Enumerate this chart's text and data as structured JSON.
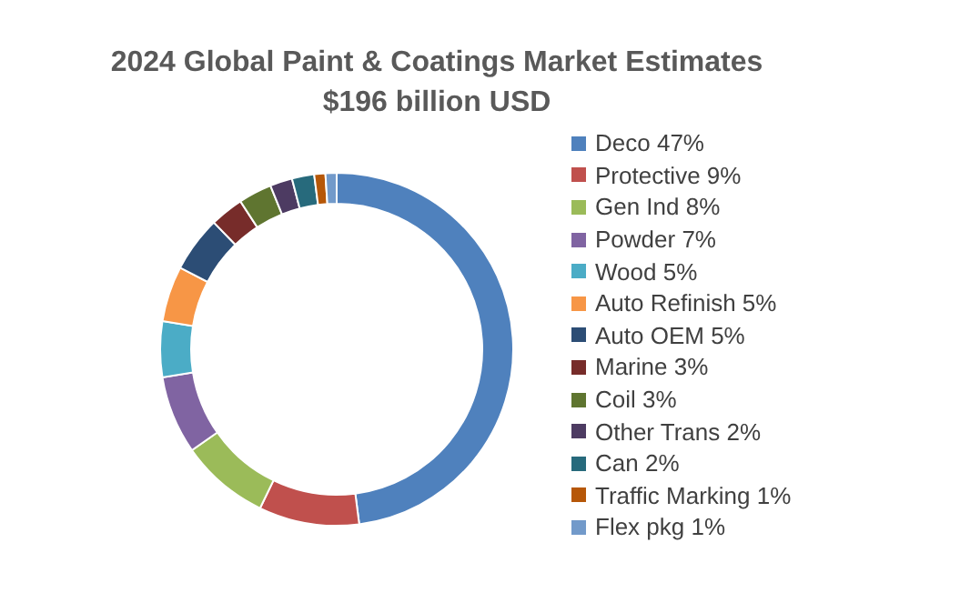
{
  "chart_data": {
    "type": "donut",
    "title": "2024 Global Paint & Coatings Market Estimates\n$196 billion USD",
    "categories": [
      "Deco 47%",
      "Protective 9%",
      "Gen Ind 8%",
      "Powder 7%",
      "Wood 5%",
      "Auto Refinish 5%",
      "Auto OEM 5%",
      "Marine 3%",
      "Coil 3%",
      "Other Trans 2%",
      "Can 2%",
      "Traffic Marking 1%",
      "Flex pkg 1%"
    ],
    "values": [
      47,
      9,
      8,
      7,
      5,
      5,
      5,
      3,
      3,
      2,
      2,
      1,
      1
    ],
    "colors": [
      "#4f81bd",
      "#c0504d",
      "#9bbb59",
      "#8064a2",
      "#4bacc6",
      "#f79646",
      "#2c4d75",
      "#772c2a",
      "#5f7530",
      "#4d3b62",
      "#276a7c",
      "#b65708",
      "#729aca"
    ],
    "legend": "right"
  }
}
